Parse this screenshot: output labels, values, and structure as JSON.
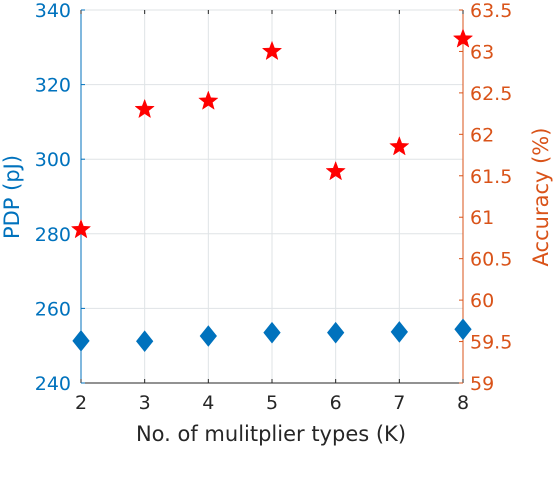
{
  "chart_data": {
    "type": "scatter",
    "xlabel": "No. of mulitplier types (K)",
    "ylabel_left": "PDP (pJ)",
    "ylabel_right": "Accuracy (%)",
    "xlim": [
      2,
      8
    ],
    "ylim_left": [
      240,
      340
    ],
    "ylim_right": [
      59,
      63.5
    ],
    "x_ticks": [
      "2",
      "3",
      "4",
      "5",
      "6",
      "7",
      "8"
    ],
    "y_left_ticks": [
      "240",
      "260",
      "280",
      "300",
      "320",
      "340"
    ],
    "y_right_ticks": [
      "59",
      "59.5",
      "60",
      "60.5",
      "61",
      "61.5",
      "62",
      "62.5",
      "63",
      "63.5"
    ],
    "grid": true,
    "series": [
      {
        "axis": "left",
        "marker": "diamond",
        "color": "#0072BD",
        "x": [
          2,
          3,
          4,
          5,
          6,
          7,
          8
        ],
        "values": [
          251.3,
          251.2,
          252.6,
          253.5,
          253.5,
          253.7,
          254.4
        ]
      },
      {
        "axis": "right",
        "marker": "star",
        "color": "#FF0000",
        "x": [
          2,
          3,
          4,
          5,
          6,
          7,
          8
        ],
        "values": [
          60.85,
          62.3,
          62.4,
          63.0,
          61.55,
          61.85,
          63.15
        ]
      }
    ],
    "colors": {
      "left_axis": "#0072BD",
      "right_axis": "#D95319",
      "grid": "#dfe3e6",
      "axis_line": "#262626"
    }
  }
}
